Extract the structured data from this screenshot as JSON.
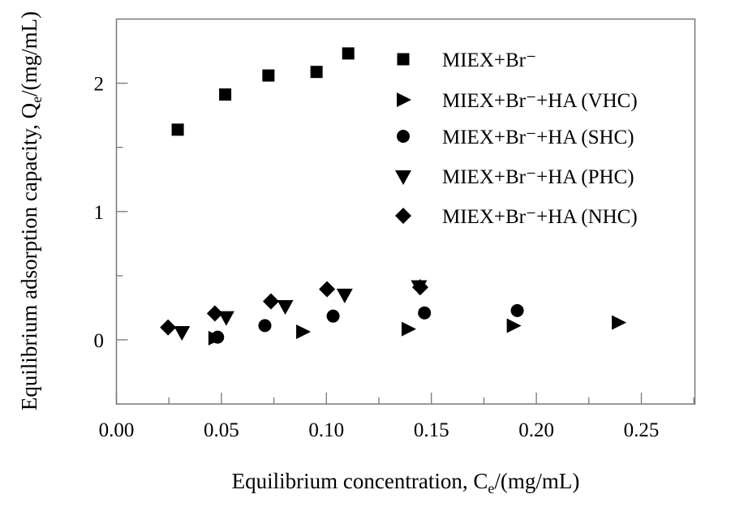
{
  "chart_data": {
    "type": "scatter",
    "xlabel": "Equilibrium concentration, C",
    "xlabel_sub": "e",
    "xlabel_unit": "/(mg/mL)",
    "ylabel": "Equilibrium adsorption capacity, Q",
    "ylabel_sub": "e",
    "ylabel_unit": "/(mg/mL)",
    "xlim": [
      0,
      0.2755
    ],
    "ylim": [
      -0.5,
      2.5
    ],
    "xticks": [
      "0.00",
      "0.05",
      "0.10",
      "0.15",
      "0.20",
      "0.25"
    ],
    "xtick_values": [
      0,
      0.05,
      0.1,
      0.15,
      0.2,
      0.25
    ],
    "yticks": [
      "0",
      "1",
      "2"
    ],
    "ytick_values": [
      0,
      1,
      2
    ],
    "legend_position": "top-right",
    "series": [
      {
        "name": "MIEX+Br⁻",
        "marker": "square",
        "x": [
          0.0292,
          0.0518,
          0.0724,
          0.0953,
          0.1104
        ],
        "y": [
          1.638,
          1.912,
          2.06,
          2.088,
          2.232
        ]
      },
      {
        "name": "MIEX+Br⁻+HA (VHC)",
        "marker": "triangle-right",
        "x": [
          0.0469,
          0.0887,
          0.1389,
          0.189,
          0.239
        ],
        "y": [
          0.013,
          0.063,
          0.084,
          0.11,
          0.135
        ]
      },
      {
        "name": "MIEX+Br⁻+HA (SHC)",
        "marker": "circle",
        "x": [
          0.0482,
          0.0707,
          0.1032,
          0.1467,
          0.1909
        ],
        "y": [
          0.021,
          0.111,
          0.185,
          0.21,
          0.228
        ]
      },
      {
        "name": "MIEX+Br⁻+HA (PHC)",
        "marker": "triangle-down",
        "x": [
          0.0312,
          0.0523,
          0.0804,
          0.1087,
          0.1441
        ],
        "y": [
          0.063,
          0.179,
          0.265,
          0.354,
          0.42
        ]
      },
      {
        "name": "MIEX+Br⁻+HA (NHC)",
        "marker": "diamond",
        "x": [
          0.0246,
          0.0469,
          0.0736,
          0.1003,
          0.1447
        ],
        "y": [
          0.097,
          0.206,
          0.3,
          0.395,
          0.41
        ]
      }
    ]
  }
}
